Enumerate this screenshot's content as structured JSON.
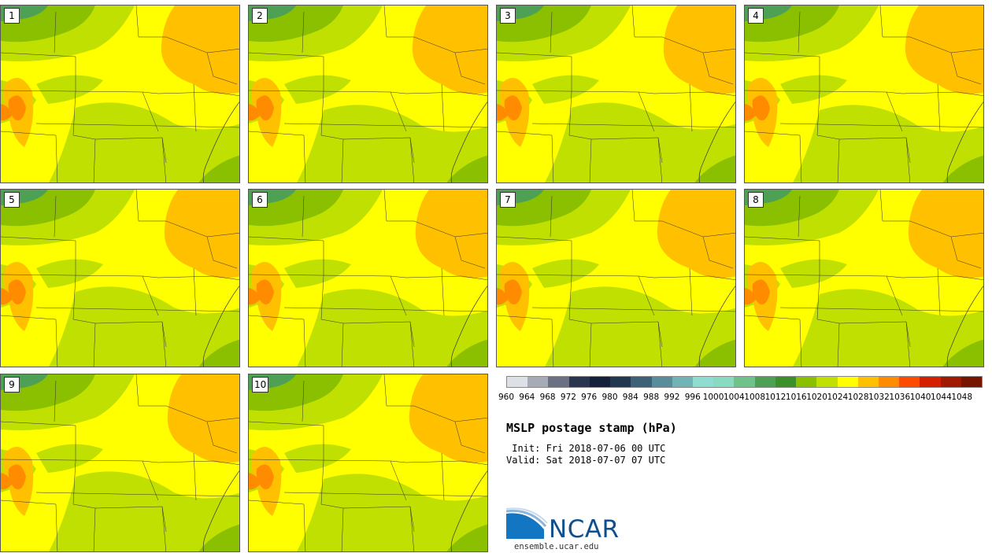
{
  "panels": [
    {
      "label": "1"
    },
    {
      "label": "2"
    },
    {
      "label": "3"
    },
    {
      "label": "4"
    },
    {
      "label": "5"
    },
    {
      "label": "6"
    },
    {
      "label": "7"
    },
    {
      "label": "8"
    },
    {
      "label": "9"
    },
    {
      "label": "10"
    }
  ],
  "colorbar": {
    "colors": [
      "#dde1e6",
      "#a7abb8",
      "#6b7083",
      "#2a3650",
      "#15213a",
      "#22384f",
      "#3d6278",
      "#5a8d9c",
      "#72b3b5",
      "#8fddd0",
      "#88dac0",
      "#6fc38a",
      "#4ea055",
      "#3d8f2a",
      "#8ac000",
      "#bfe000",
      "#ffff00",
      "#ffc000",
      "#ff8b00",
      "#ff4b00",
      "#d42000",
      "#a01a00",
      "#761500"
    ],
    "ticks": [
      "960",
      "964",
      "968",
      "972",
      "976",
      "980",
      "984",
      "988",
      "992",
      "996",
      "1000",
      "1004",
      "1008",
      "1012",
      "1016",
      "1020",
      "1024",
      "1028",
      "1032",
      "1036",
      "1040",
      "1044",
      "1048"
    ]
  },
  "title": "MSLP postage stamp (hPa)",
  "init_line": " Init: Fri 2018-07-06 00 UTC",
  "valid_line": "Valid: Sat 2018-07-07 07 UTC",
  "logo": {
    "text": "NCAR"
  },
  "website": "ensemble.ucar.edu"
}
